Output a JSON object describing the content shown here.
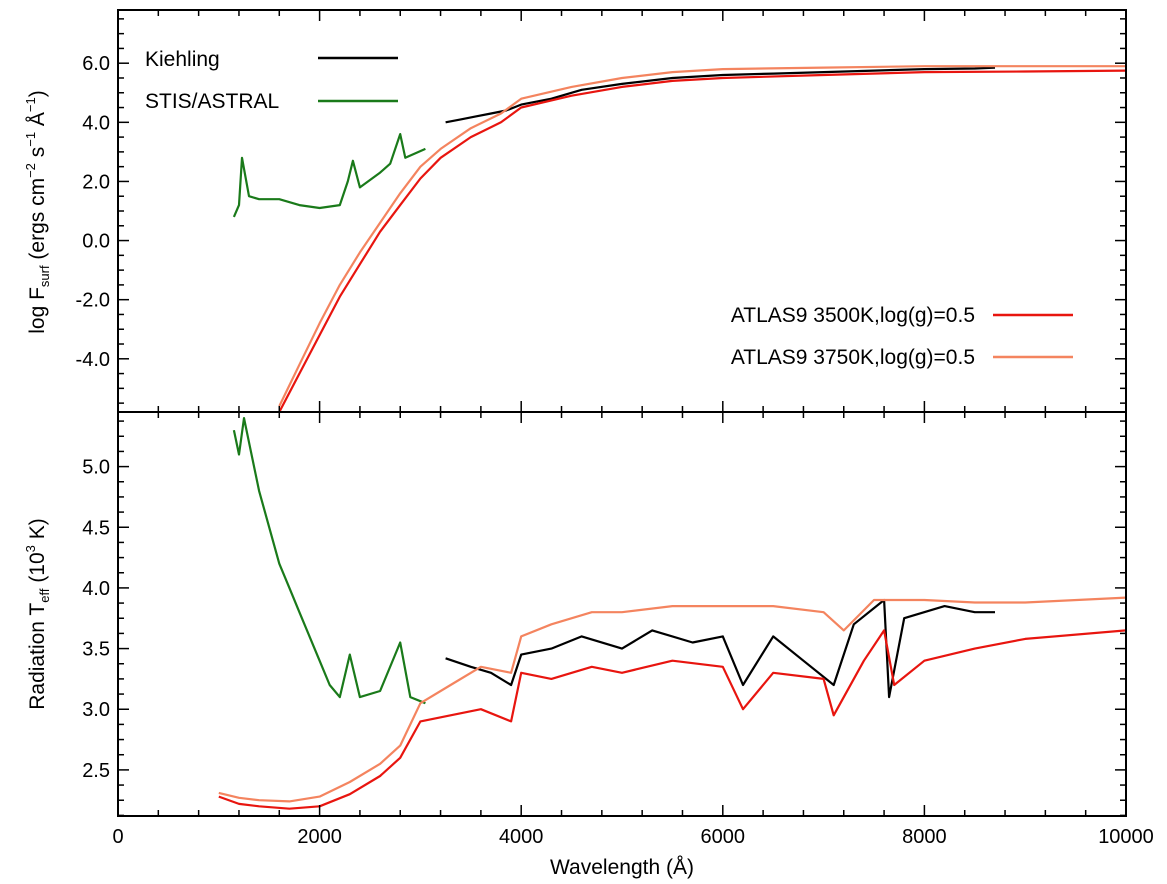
{
  "chart_data": [
    {
      "type": "line",
      "panel": "top",
      "ylabel_parts": [
        "log F",
        "surf",
        " (ergs cm",
        "−2",
        " s",
        "−1",
        " Å",
        "−1",
        ")"
      ],
      "ylim": [
        -5.8,
        7.8
      ],
      "yticks": [
        -4.0,
        -2.0,
        0.0,
        2.0,
        4.0,
        6.0
      ],
      "ytick_labels": [
        "-4.0",
        "-2.0",
        "0.0",
        "2.0",
        "4.0",
        "6.0"
      ],
      "xlim": [
        0,
        10000
      ],
      "legend_position": "top-left and bottom-right",
      "series": [
        {
          "name": "Kiehling",
          "color": "#000000",
          "x": [
            3250,
            3400,
            3550,
            3700,
            3850,
            4000,
            4300,
            4600,
            5000,
            5500,
            6000,
            6500,
            7000,
            7500,
            8000,
            8500,
            8700
          ],
          "y": [
            4.0,
            4.1,
            4.2,
            4.3,
            4.4,
            4.6,
            4.8,
            5.1,
            5.3,
            5.5,
            5.6,
            5.65,
            5.7,
            5.75,
            5.8,
            5.82,
            5.85
          ]
        },
        {
          "name": "STIS/ASTRAL",
          "color": "#1a7a1a",
          "x": [
            1150,
            1200,
            1230,
            1300,
            1400,
            1600,
            1800,
            2000,
            2200,
            2280,
            2330,
            2400,
            2600,
            2700,
            2800,
            2850,
            3050
          ],
          "y": [
            0.8,
            1.2,
            2.8,
            1.5,
            1.4,
            1.4,
            1.2,
            1.1,
            1.2,
            2.0,
            2.7,
            1.8,
            2.3,
            2.6,
            3.6,
            2.8,
            3.1
          ]
        },
        {
          "name": "ATLAS9 3500K,log(g)=0.5",
          "color": "#e8150f",
          "x": [
            1600,
            1800,
            2000,
            2200,
            2400,
            2600,
            2800,
            3000,
            3200,
            3500,
            3800,
            4000,
            4500,
            5000,
            5500,
            6000,
            7000,
            8000,
            9000,
            10000
          ],
          "y": [
            -5.8,
            -4.5,
            -3.2,
            -1.9,
            -0.8,
            0.3,
            1.2,
            2.1,
            2.8,
            3.5,
            4.0,
            4.5,
            4.9,
            5.2,
            5.4,
            5.5,
            5.6,
            5.7,
            5.72,
            5.75
          ]
        },
        {
          "name": "ATLAS9 3750K,log(g)=0.5",
          "color": "#f4845f",
          "x": [
            1600,
            1800,
            2000,
            2200,
            2400,
            2600,
            2800,
            3000,
            3200,
            3500,
            3800,
            4000,
            4500,
            5000,
            5500,
            6000,
            7000,
            8000,
            9000,
            10000
          ],
          "y": [
            -5.6,
            -4.2,
            -2.8,
            -1.5,
            -0.4,
            0.6,
            1.6,
            2.5,
            3.1,
            3.8,
            4.3,
            4.8,
            5.2,
            5.5,
            5.7,
            5.8,
            5.85,
            5.9,
            5.9,
            5.9
          ]
        }
      ]
    },
    {
      "type": "line",
      "panel": "bottom",
      "ylabel_parts": [
        "Radiation T",
        "eff",
        " (10",
        "3",
        " K)"
      ],
      "ylim": [
        2.12,
        5.45
      ],
      "yticks": [
        2.5,
        3.0,
        3.5,
        4.0,
        4.5,
        5.0
      ],
      "ytick_labels": [
        "2.5",
        "3.0",
        "3.5",
        "4.0",
        "4.5",
        "5.0"
      ],
      "xlabel": "Wavelength (Å)",
      "xlim": [
        0,
        10000
      ],
      "xticks": [
        0,
        2000,
        4000,
        6000,
        8000,
        10000
      ],
      "xtick_labels": [
        "0",
        "2000",
        "4000",
        "6000",
        "8000",
        "10000"
      ],
      "series": [
        {
          "name": "Kiehling",
          "color": "#000000",
          "x": [
            3250,
            3500,
            3700,
            3900,
            4000,
            4300,
            4600,
            5000,
            5300,
            5700,
            6000,
            6200,
            6500,
            6800,
            7100,
            7300,
            7600,
            7650,
            7800,
            8200,
            8500,
            8700
          ],
          "y": [
            3.42,
            3.35,
            3.3,
            3.2,
            3.45,
            3.5,
            3.6,
            3.5,
            3.65,
            3.55,
            3.6,
            3.2,
            3.6,
            3.4,
            3.2,
            3.7,
            3.9,
            3.1,
            3.75,
            3.85,
            3.8,
            3.8
          ]
        },
        {
          "name": "STIS/ASTRAL",
          "color": "#1a7a1a",
          "x": [
            1150,
            1200,
            1250,
            1300,
            1400,
            1500,
            1600,
            1700,
            1800,
            1900,
            2000,
            2100,
            2200,
            2300,
            2400,
            2600,
            2800,
            2900,
            3050
          ],
          "y": [
            5.3,
            5.1,
            5.4,
            5.2,
            4.8,
            4.5,
            4.2,
            4.0,
            3.8,
            3.6,
            3.4,
            3.2,
            3.1,
            3.45,
            3.1,
            3.15,
            3.55,
            3.1,
            3.05
          ]
        },
        {
          "name": "ATLAS9 3500K,log(g)=0.5",
          "color": "#e8150f",
          "x": [
            1000,
            1200,
            1400,
            1700,
            2000,
            2300,
            2600,
            2800,
            3000,
            3300,
            3600,
            3900,
            4000,
            4300,
            4700,
            5000,
            5500,
            6000,
            6200,
            6500,
            7000,
            7100,
            7400,
            7600,
            7700,
            8000,
            8500,
            9000,
            10000
          ],
          "y": [
            2.28,
            2.22,
            2.2,
            2.18,
            2.2,
            2.3,
            2.45,
            2.6,
            2.9,
            2.95,
            3.0,
            2.9,
            3.3,
            3.25,
            3.35,
            3.3,
            3.4,
            3.35,
            3.0,
            3.3,
            3.25,
            2.95,
            3.4,
            3.65,
            3.2,
            3.4,
            3.5,
            3.58,
            3.65
          ]
        },
        {
          "name": "ATLAS9 3750K,log(g)=0.5",
          "color": "#f4845f",
          "x": [
            1000,
            1200,
            1400,
            1700,
            2000,
            2300,
            2600,
            2800,
            3000,
            3300,
            3600,
            3900,
            4000,
            4300,
            4700,
            5000,
            5500,
            6000,
            6500,
            7000,
            7200,
            7500,
            8000,
            8500,
            9000,
            10000
          ],
          "y": [
            2.31,
            2.27,
            2.25,
            2.24,
            2.28,
            2.4,
            2.55,
            2.7,
            3.05,
            3.2,
            3.35,
            3.3,
            3.6,
            3.7,
            3.8,
            3.8,
            3.85,
            3.85,
            3.85,
            3.8,
            3.65,
            3.9,
            3.9,
            3.88,
            3.88,
            3.92
          ]
        }
      ]
    }
  ]
}
